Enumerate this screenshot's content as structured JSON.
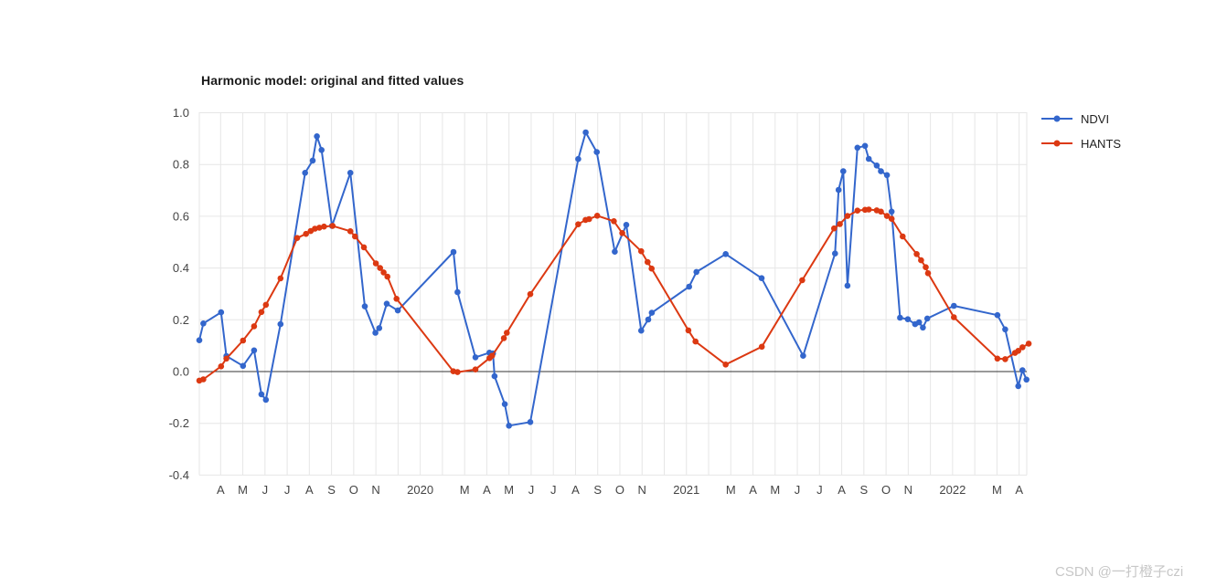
{
  "title": "Harmonic model: original and fitted values",
  "watermark": "CSDN @一打橙子czi",
  "colors": {
    "ndvi": "#3366cc",
    "hants": "#dc3912",
    "grid": "#e6e6e6",
    "baseline": "#333333",
    "axis_text": "#444444"
  },
  "legend": {
    "items": [
      {
        "label": "NDVI",
        "color": "#3366cc"
      },
      {
        "label": "HANTS",
        "color": "#dc3912"
      }
    ]
  },
  "chart_data": {
    "type": "line",
    "title": "Harmonic model: original and fitted values",
    "xlabel": "",
    "ylabel": "",
    "x_unit": "months since April 2019 tick (0 = A/Apr-2019, 36 = A/Apr-2022)",
    "x_range": [
      -0.96,
      36.45
    ],
    "ylim": [
      -0.4,
      1.0
    ],
    "grid": true,
    "legend_position": "right",
    "y_tick_labels": [
      "1.0",
      "0.8",
      "0.6",
      "0.4",
      "0.2",
      "0.0",
      "-0.2",
      "-0.4"
    ],
    "y_ticks": [
      1.0,
      0.8,
      0.6,
      0.4,
      0.2,
      0.0,
      -0.2,
      -0.4
    ],
    "x_tick_labels": [
      "A",
      "M",
      "J",
      "J",
      "A",
      "S",
      "O",
      "N",
      "",
      "2020",
      "",
      "M",
      "A",
      "M",
      "J",
      "J",
      "A",
      "S",
      "O",
      "N",
      "",
      "2021",
      "",
      "M",
      "A",
      "M",
      "J",
      "J",
      "A",
      "S",
      "O",
      "N",
      "",
      "2022",
      "",
      "M",
      "A"
    ],
    "series": [
      {
        "name": "NDVI",
        "color": "#3366cc",
        "points": [
          [
            -0.96,
            0.121
          ],
          [
            -0.78,
            0.186
          ],
          [
            0.02,
            0.229
          ],
          [
            0.26,
            0.06
          ],
          [
            1.01,
            0.022
          ],
          [
            1.51,
            0.082
          ],
          [
            1.84,
            -0.088
          ],
          [
            2.04,
            -0.109
          ],
          [
            2.7,
            0.183
          ],
          [
            3.81,
            0.768
          ],
          [
            4.15,
            0.815
          ],
          [
            4.34,
            0.909
          ],
          [
            4.55,
            0.856
          ],
          [
            5.02,
            0.563
          ],
          [
            5.85,
            0.768
          ],
          [
            6.5,
            0.252
          ],
          [
            6.98,
            0.15
          ],
          [
            7.15,
            0.168
          ],
          [
            7.49,
            0.262
          ],
          [
            7.99,
            0.236
          ],
          [
            10.5,
            0.462
          ],
          [
            10.68,
            0.307
          ],
          [
            11.49,
            0.055
          ],
          [
            12.12,
            0.073
          ],
          [
            12.28,
            0.07
          ],
          [
            12.35,
            -0.018
          ],
          [
            12.81,
            -0.126
          ],
          [
            13.0,
            -0.209
          ],
          [
            13.96,
            -0.195
          ],
          [
            16.12,
            0.821
          ],
          [
            16.46,
            0.924
          ],
          [
            16.96,
            0.848
          ],
          [
            17.77,
            0.463
          ],
          [
            18.29,
            0.567
          ],
          [
            18.96,
            0.158
          ],
          [
            19.28,
            0.201
          ],
          [
            19.44,
            0.227
          ],
          [
            21.12,
            0.328
          ],
          [
            21.45,
            0.385
          ],
          [
            22.77,
            0.454
          ],
          [
            24.39,
            0.361
          ],
          [
            26.26,
            0.061
          ],
          [
            27.7,
            0.456
          ],
          [
            27.86,
            0.702
          ],
          [
            28.07,
            0.774
          ],
          [
            28.26,
            0.332
          ],
          [
            28.71,
            0.865
          ],
          [
            29.05,
            0.872
          ],
          [
            29.22,
            0.822
          ],
          [
            29.58,
            0.796
          ],
          [
            29.77,
            0.774
          ],
          [
            30.04,
            0.759
          ],
          [
            30.25,
            0.618
          ],
          [
            30.63,
            0.208
          ],
          [
            30.98,
            0.202
          ],
          [
            31.31,
            0.183
          ],
          [
            31.49,
            0.19
          ],
          [
            31.66,
            0.17
          ],
          [
            31.86,
            0.205
          ],
          [
            33.06,
            0.254
          ],
          [
            35.02,
            0.218
          ],
          [
            35.37,
            0.163
          ],
          [
            35.96,
            -0.056
          ],
          [
            36.15,
            0.005
          ],
          [
            36.33,
            -0.031
          ]
        ]
      },
      {
        "name": "HANTS",
        "color": "#dc3912",
        "points": [
          [
            -0.96,
            -0.035
          ],
          [
            -0.78,
            -0.03
          ],
          [
            0.02,
            0.02
          ],
          [
            0.26,
            0.05
          ],
          [
            1.01,
            0.12
          ],
          [
            1.51,
            0.175
          ],
          [
            1.84,
            0.23
          ],
          [
            2.04,
            0.258
          ],
          [
            2.7,
            0.36
          ],
          [
            3.45,
            0.516
          ],
          [
            3.85,
            0.532
          ],
          [
            4.06,
            0.543
          ],
          [
            4.25,
            0.552
          ],
          [
            4.45,
            0.556
          ],
          [
            4.66,
            0.56
          ],
          [
            5.05,
            0.563
          ],
          [
            5.85,
            0.542
          ],
          [
            6.06,
            0.522
          ],
          [
            6.46,
            0.48
          ],
          [
            7.0,
            0.418
          ],
          [
            7.19,
            0.4
          ],
          [
            7.35,
            0.383
          ],
          [
            7.52,
            0.367
          ],
          [
            7.93,
            0.281
          ],
          [
            10.49,
            0.001
          ],
          [
            10.68,
            -0.002
          ],
          [
            11.49,
            0.008
          ],
          [
            12.12,
            0.052
          ],
          [
            12.24,
            0.061
          ],
          [
            12.77,
            0.129
          ],
          [
            12.9,
            0.15
          ],
          [
            13.96,
            0.299
          ],
          [
            16.12,
            0.569
          ],
          [
            16.45,
            0.586
          ],
          [
            16.61,
            0.589
          ],
          [
            16.98,
            0.602
          ],
          [
            17.73,
            0.581
          ],
          [
            18.11,
            0.535
          ],
          [
            18.96,
            0.465
          ],
          [
            19.25,
            0.423
          ],
          [
            19.43,
            0.398
          ],
          [
            21.09,
            0.159
          ],
          [
            21.41,
            0.116
          ],
          [
            22.77,
            0.027
          ],
          [
            24.4,
            0.096
          ],
          [
            26.22,
            0.353
          ],
          [
            27.66,
            0.553
          ],
          [
            27.92,
            0.57
          ],
          [
            28.26,
            0.601
          ],
          [
            28.71,
            0.622
          ],
          [
            29.05,
            0.625
          ],
          [
            29.22,
            0.626
          ],
          [
            29.58,
            0.623
          ],
          [
            29.77,
            0.618
          ],
          [
            30.04,
            0.601
          ],
          [
            30.25,
            0.59
          ],
          [
            30.75,
            0.522
          ],
          [
            31.38,
            0.454
          ],
          [
            31.58,
            0.43
          ],
          [
            31.79,
            0.403
          ],
          [
            31.89,
            0.38
          ],
          [
            33.06,
            0.21
          ],
          [
            35.02,
            0.05
          ],
          [
            35.37,
            0.048
          ],
          [
            35.81,
            0.072
          ],
          [
            35.96,
            0.08
          ],
          [
            36.15,
            0.094
          ],
          [
            36.43,
            0.108
          ]
        ]
      }
    ]
  }
}
